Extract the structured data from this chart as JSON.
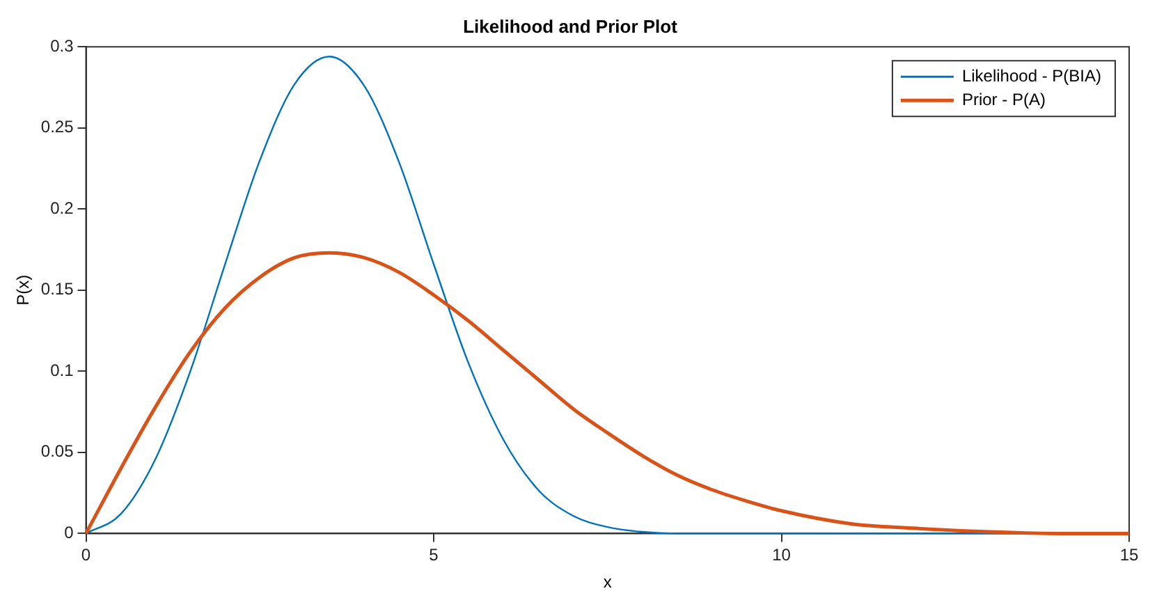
{
  "chart_data": {
    "type": "line",
    "title": "Likelihood and Prior Plot",
    "xlabel": "x",
    "ylabel": "P(x)",
    "x": [
      0,
      0.5,
      1,
      1.5,
      2,
      2.5,
      3,
      3.5,
      4,
      4.5,
      5,
      5.5,
      6,
      6.5,
      7,
      7.5,
      8,
      8.5,
      9,
      9.5,
      10,
      11,
      12,
      13,
      14,
      15
    ],
    "series": [
      {
        "name": "Likelihood - P(BIA)",
        "color": "#0072bd",
        "values": [
          0,
          0.012,
          0.046,
          0.1,
          0.166,
          0.23,
          0.277,
          0.294,
          0.276,
          0.229,
          0.166,
          0.105,
          0.058,
          0.027,
          0.011,
          0.004,
          0.001,
          0,
          0,
          0,
          0,
          0,
          0,
          0,
          0,
          0
        ]
      },
      {
        "name": "Prior - P(A)",
        "color": "#d95319",
        "values": [
          0,
          0.04,
          0.078,
          0.112,
          0.139,
          0.158,
          0.17,
          0.173,
          0.17,
          0.161,
          0.147,
          0.131,
          0.113,
          0.095,
          0.077,
          0.062,
          0.048,
          0.036,
          0.027,
          0.02,
          0.014,
          0.006,
          0.003,
          0.001,
          0,
          0
        ]
      }
    ],
    "xlim": [
      0,
      15
    ],
    "xticks": [
      0,
      5,
      10,
      15
    ],
    "ylim": [
      0,
      0.3
    ],
    "yticks": [
      0,
      0.05,
      0.1,
      0.15,
      0.2,
      0.25,
      0.3
    ],
    "grid": false,
    "legend": "top right",
    "marker": "none",
    "line_style": "solid"
  }
}
